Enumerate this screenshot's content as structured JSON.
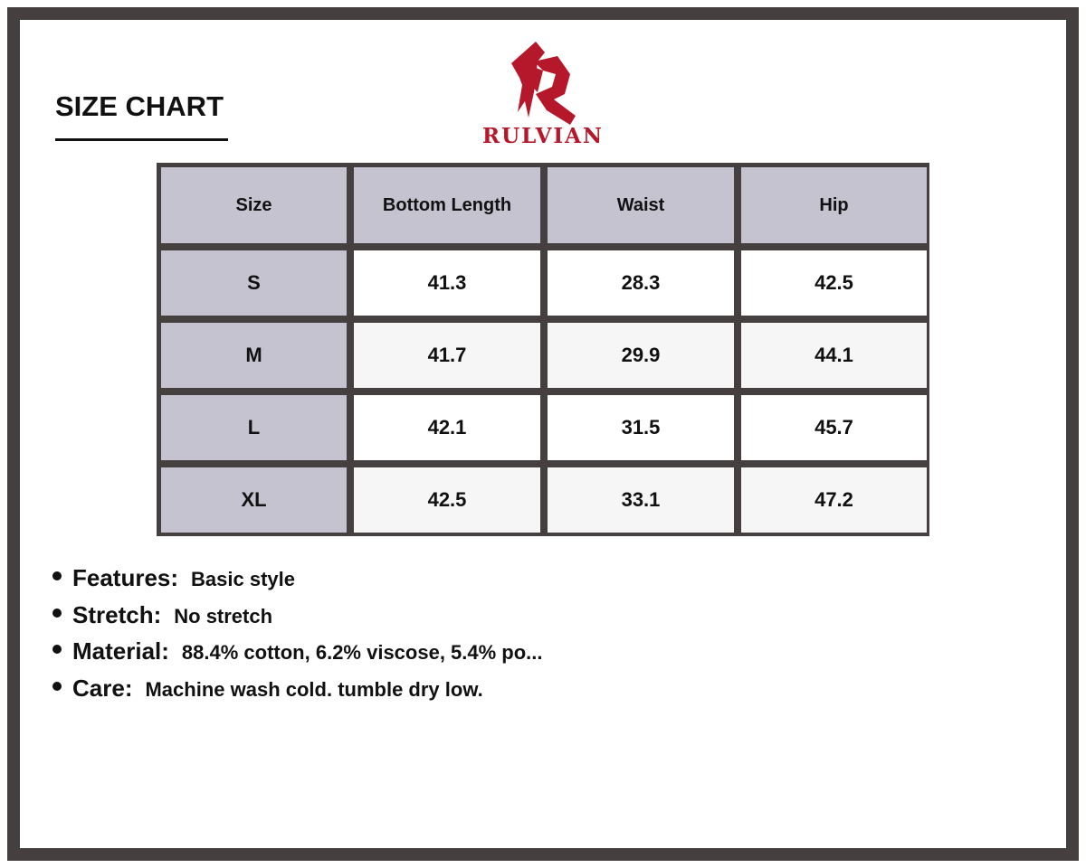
{
  "title": "SIZE CHART",
  "brand": {
    "name": "RULVIAN",
    "color": "#b5182b"
  },
  "table": {
    "headers": [
      "Size",
      "Bottom Length",
      "Waist",
      "Hip"
    ],
    "rows": [
      [
        "S",
        "41.3",
        "28.3",
        "42.5"
      ],
      [
        "M",
        "41.7",
        "29.9",
        "44.1"
      ],
      [
        "L",
        "42.1",
        "31.5",
        "45.7"
      ],
      [
        "XL",
        "42.5",
        "33.1",
        "47.2"
      ]
    ]
  },
  "features": [
    {
      "label": "Features:",
      "value": "Basic style"
    },
    {
      "label": "Stretch:",
      "value": "No stretch"
    },
    {
      "label": "Material:",
      "value": "88.4% cotton, 6.2% viscose, 5.4% po..."
    },
    {
      "label": "Care:",
      "value": "Machine wash cold. tumble dry low."
    }
  ]
}
